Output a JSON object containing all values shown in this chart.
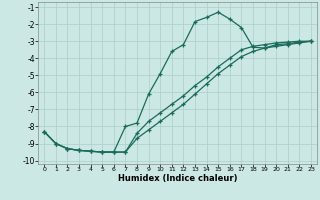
{
  "xlabel": "Humidex (Indice chaleur)",
  "bg_color": "#cce8e4",
  "grid_color": "#aaceca",
  "line_color": "#1a6b5a",
  "xlim": [
    -0.5,
    23.5
  ],
  "ylim": [
    -10.2,
    -0.7
  ],
  "xticks": [
    0,
    1,
    2,
    3,
    4,
    5,
    6,
    7,
    8,
    9,
    10,
    11,
    12,
    13,
    14,
    15,
    16,
    17,
    18,
    19,
    20,
    21,
    22,
    23
  ],
  "yticks": [
    -1,
    -2,
    -3,
    -4,
    -5,
    -6,
    -7,
    -8,
    -9,
    -10
  ],
  "line1_x": [
    0,
    1,
    2,
    3,
    4,
    5,
    6,
    7,
    8,
    9,
    10,
    11,
    12,
    13,
    14,
    15,
    16,
    17,
    18,
    19,
    20,
    21,
    22,
    23
  ],
  "line1_y": [
    -8.3,
    -9.0,
    -9.3,
    -9.4,
    -9.45,
    -9.5,
    -9.5,
    -8.0,
    -7.8,
    -6.1,
    -4.9,
    -3.6,
    -3.2,
    -1.85,
    -1.6,
    -1.3,
    -1.7,
    -2.2,
    -3.35,
    -3.4,
    -3.2,
    -3.15,
    -3.05,
    -3.0
  ],
  "line2_x": [
    0,
    1,
    2,
    3,
    4,
    5,
    6,
    7,
    8,
    9,
    10,
    11,
    12,
    13,
    14,
    15,
    16,
    17,
    18,
    19,
    20,
    21,
    22,
    23
  ],
  "line2_y": [
    -8.3,
    -9.0,
    -9.3,
    -9.4,
    -9.45,
    -9.5,
    -9.5,
    -9.5,
    -8.7,
    -8.2,
    -7.7,
    -7.2,
    -6.7,
    -6.1,
    -5.5,
    -4.9,
    -4.4,
    -3.9,
    -3.6,
    -3.4,
    -3.3,
    -3.2,
    -3.1,
    -3.0
  ],
  "line3_x": [
    0,
    1,
    2,
    3,
    4,
    5,
    6,
    7,
    8,
    9,
    10,
    11,
    12,
    13,
    14,
    15,
    16,
    17,
    18,
    19,
    20,
    21,
    22,
    23
  ],
  "line3_y": [
    -8.3,
    -9.0,
    -9.3,
    -9.4,
    -9.45,
    -9.5,
    -9.5,
    -9.5,
    -8.4,
    -7.7,
    -7.2,
    -6.7,
    -6.2,
    -5.6,
    -5.1,
    -4.5,
    -4.0,
    -3.5,
    -3.3,
    -3.2,
    -3.1,
    -3.05,
    -3.0,
    -3.0
  ]
}
